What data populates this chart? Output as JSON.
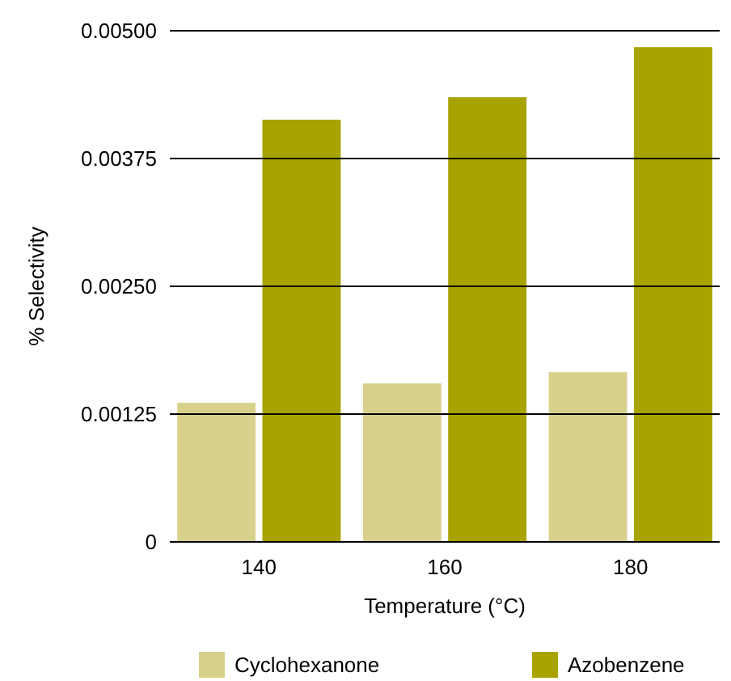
{
  "chart_data": {
    "type": "bar",
    "xlabel": "Temperature (°C)",
    "ylabel": "% Selectivity",
    "categories": [
      "140",
      "160",
      "180"
    ],
    "series": [
      {
        "name": "Cyclohexanone",
        "color": "#d8d18c",
        "values": [
          0.00136,
          0.00155,
          0.00166
        ]
      },
      {
        "name": "Azobenzene",
        "color": "#a9a300",
        "values": [
          0.00413,
          0.00435,
          0.00484
        ]
      }
    ],
    "ylim": [
      0,
      0.005
    ],
    "yticks": [
      0,
      {
        "value": 0.00125,
        "label": "0.00125"
      },
      {
        "value": 0.0025,
        "label": "0.00250"
      },
      {
        "value": 0.00375,
        "label": "0.00375"
      },
      {
        "value": 0.005,
        "label": "0.00500"
      }
    ],
    "grid": "y",
    "legend": "bottom"
  }
}
